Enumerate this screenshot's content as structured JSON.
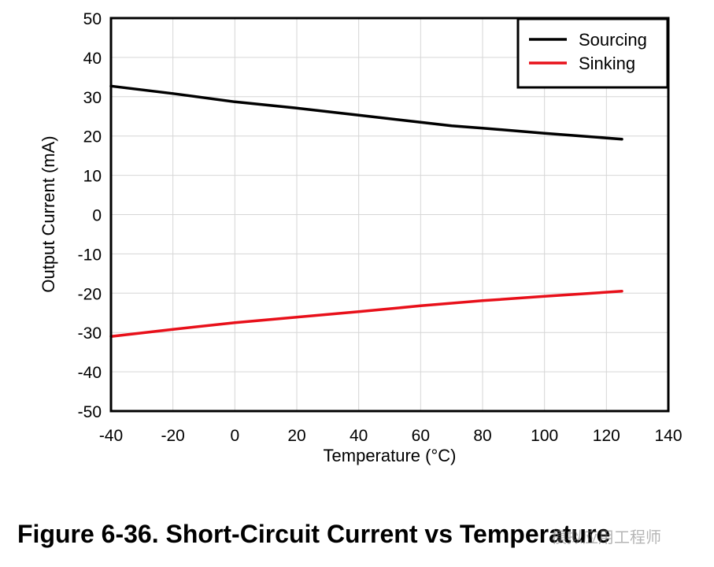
{
  "chart_data": {
    "type": "line",
    "title": "",
    "xlabel": "Temperature (°C)",
    "ylabel": "Output Current (mA)",
    "xlim": [
      -40,
      140
    ],
    "ylim": [
      -50,
      50
    ],
    "xticks": [
      -40,
      -20,
      0,
      20,
      40,
      60,
      80,
      100,
      120,
      140
    ],
    "yticks": [
      50,
      40,
      30,
      20,
      10,
      0,
      -10,
      -20,
      -30,
      -40,
      -50
    ],
    "xtick_labels": [
      "-40",
      "-20",
      "0",
      "20",
      "40",
      "60",
      "80",
      "100",
      "120",
      "140"
    ],
    "ytick_labels": [
      "50",
      "40",
      "30",
      "20",
      "10",
      "0",
      "-10",
      "-20",
      "-30",
      "-40",
      "-50"
    ],
    "grid": true,
    "legend_position": "top-right",
    "series": [
      {
        "name": "Sourcing",
        "color": "#000000",
        "x": [
          -40,
          -20,
          0,
          20,
          40,
          60,
          70,
          80,
          100,
          125
        ],
        "y": [
          32.7,
          30.8,
          28.7,
          27.1,
          25.3,
          23.5,
          22.6,
          22.0,
          20.7,
          19.2
        ]
      },
      {
        "name": "Sinking",
        "color": "#e8101a",
        "x": [
          -40,
          -20,
          0,
          20,
          40,
          60,
          80,
          100,
          125
        ],
        "y": [
          -31.0,
          -29.2,
          -27.5,
          -26.1,
          -24.7,
          -23.2,
          -21.9,
          -20.8,
          -19.5
        ]
      }
    ]
  },
  "caption": {
    "text": "Figure 6-36. Short-Circuit Current vs Temperature"
  },
  "watermark": {
    "text": "模拟应用工程师"
  }
}
